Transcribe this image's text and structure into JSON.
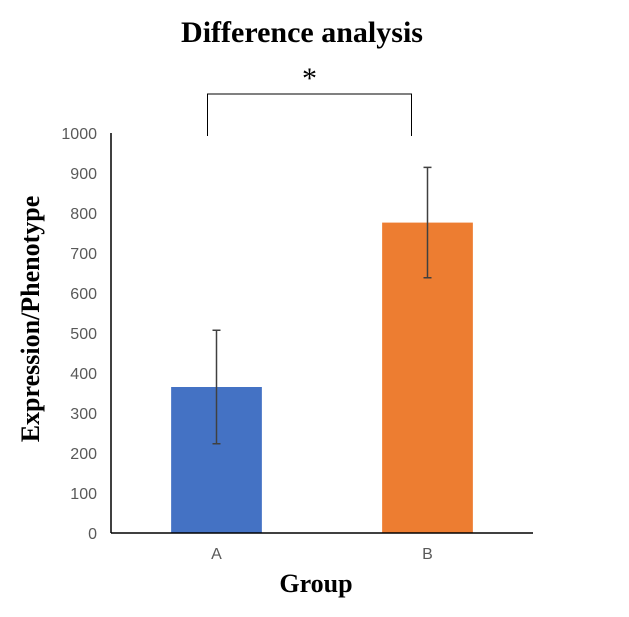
{
  "chart_data": {
    "type": "bar",
    "title": "Difference analysis",
    "xlabel": "Group",
    "ylabel": "Expression/Phenotype",
    "categories": [
      "A",
      "B"
    ],
    "values": [
      365,
      776
    ],
    "errors": [
      142,
      138
    ],
    "bar_colors": [
      "#4472C4",
      "#ED7D31"
    ],
    "ylim": [
      0,
      1000
    ],
    "yticks": [
      0,
      100,
      200,
      300,
      400,
      500,
      600,
      700,
      800,
      900,
      1000
    ],
    "grid": false,
    "legend": "none",
    "significance": {
      "between": [
        "A",
        "B"
      ],
      "label": "*"
    }
  }
}
